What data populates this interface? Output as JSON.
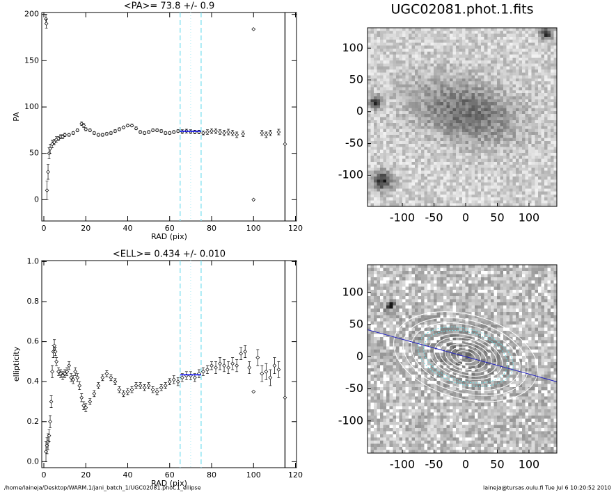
{
  "chart_data": [
    {
      "type": "scatter",
      "title": "<PA>=  73.8 +/-   0.9",
      "x_label": "RAD (pix)",
      "y_label": "PA",
      "xlim": [
        -1,
        120.5
      ],
      "ylim": [
        -23,
        202
      ],
      "xticks": [
        0,
        20,
        40,
        60,
        80,
        100,
        120
      ],
      "yticks": [
        0,
        50,
        100,
        150,
        200
      ],
      "color": "#000000",
      "x": [
        1,
        1.2,
        1.5,
        2,
        2.5,
        3,
        4,
        5,
        6,
        7,
        8,
        9,
        10,
        12,
        14,
        16,
        18,
        19,
        20,
        22,
        24,
        26,
        28,
        30,
        32,
        34,
        36,
        38,
        40,
        42,
        44,
        46,
        48,
        50,
        52,
        54,
        56,
        58,
        60,
        62,
        64,
        66,
        68,
        70,
        72,
        74,
        76,
        78,
        80,
        82,
        84,
        86,
        88,
        90,
        92,
        95,
        100,
        100,
        104,
        106,
        108,
        112,
        115
      ],
      "values": [
        195,
        190,
        10,
        30,
        50,
        55,
        60,
        62,
        65,
        66,
        68,
        68,
        70,
        70,
        72,
        75,
        82,
        80,
        76,
        75,
        72,
        70,
        70,
        71,
        72,
        74,
        76,
        78,
        80,
        80,
        77,
        73,
        72,
        73,
        75,
        75,
        74,
        72,
        72,
        73,
        74,
        73.5,
        74,
        73.5,
        73,
        73,
        72,
        73,
        74,
        74,
        73,
        72,
        73,
        72,
        70,
        71,
        184,
        0,
        72,
        70,
        72,
        73,
        60
      ],
      "errors": [
        5,
        5,
        10,
        8,
        6,
        5,
        4,
        3,
        3,
        2,
        2,
        2,
        2,
        1.5,
        1.5,
        1.5,
        2,
        2,
        1.5,
        1.5,
        1.5,
        1.5,
        1.5,
        1.5,
        1.5,
        1.5,
        1.5,
        1.5,
        1.5,
        1.5,
        1.5,
        1.5,
        1.5,
        1.5,
        1.5,
        1.5,
        1.5,
        1.5,
        1.5,
        1.5,
        1.5,
        2,
        2,
        2,
        2,
        2,
        2,
        2.5,
        2.5,
        2.5,
        2.5,
        3,
        3,
        3,
        3,
        3,
        0,
        0,
        3,
        3,
        3,
        3,
        0
      ],
      "vlines": [
        {
          "x": 65,
          "style": "dashed",
          "color": "#80e0f0"
        },
        {
          "x": 70,
          "style": "dotted",
          "color": "#c0f0f8"
        },
        {
          "x": 75,
          "style": "dashed",
          "color": "#80e0f0"
        },
        {
          "x": 115,
          "style": "solid",
          "color": "#000000"
        }
      ],
      "mean_line": {
        "x": [
          65,
          75
        ],
        "y": 73.8,
        "color": "#0000ff"
      }
    },
    {
      "type": "scatter",
      "title": "<ELL>= 0.434 +/-  0.010",
      "x_label": "RAD (pix)",
      "y_label": "ellipticity",
      "xlim": [
        -1,
        120.5
      ],
      "ylim": [
        -0.03,
        1.005
      ],
      "xticks": [
        0,
        20,
        40,
        60,
        80,
        100,
        120
      ],
      "yticks": [
        {
          "value": 0,
          "label": "0.0"
        },
        0.2,
        0.4,
        0.6,
        0.8,
        {
          "value": 1,
          "label": "1.0"
        }
      ],
      "color": "#000000",
      "x": [
        1,
        1.5,
        2,
        2.5,
        3,
        3.5,
        4,
        4.5,
        5,
        5.5,
        6,
        7,
        8,
        9,
        10,
        11,
        12,
        13,
        14,
        15,
        16,
        17,
        18,
        19,
        20,
        22,
        24,
        26,
        28,
        30,
        32,
        34,
        36,
        38,
        40,
        42,
        44,
        46,
        48,
        50,
        52,
        54,
        56,
        58,
        60,
        62,
        64,
        66,
        68,
        70,
        72,
        74,
        76,
        78,
        80,
        82,
        84,
        86,
        88,
        90,
        92,
        94,
        96,
        98,
        100,
        102,
        104,
        106,
        108,
        110,
        112,
        115
      ],
      "values": [
        0.05,
        0.08,
        0.1,
        0.13,
        0.2,
        0.3,
        0.45,
        0.55,
        0.58,
        0.55,
        0.5,
        0.45,
        0.44,
        0.43,
        0.44,
        0.45,
        0.48,
        0.42,
        0.41,
        0.45,
        0.42,
        0.38,
        0.32,
        0.28,
        0.27,
        0.3,
        0.34,
        0.38,
        0.42,
        0.44,
        0.42,
        0.4,
        0.36,
        0.34,
        0.35,
        0.36,
        0.38,
        0.38,
        0.37,
        0.38,
        0.36,
        0.35,
        0.37,
        0.38,
        0.4,
        0.41,
        0.4,
        0.42,
        0.43,
        0.43,
        0.42,
        0.44,
        0.45,
        0.46,
        0.48,
        0.47,
        0.49,
        0.48,
        0.47,
        0.49,
        0.48,
        0.54,
        0.55,
        0.47,
        0.35,
        0.52,
        0.44,
        0.45,
        0.42,
        0.48,
        0.46,
        0.32
      ],
      "errors": [
        0.05,
        0.04,
        0.04,
        0.03,
        0.03,
        0.03,
        0.03,
        0.03,
        0.03,
        0.02,
        0.02,
        0.02,
        0.02,
        0.02,
        0.02,
        0.02,
        0.02,
        0.02,
        0.02,
        0.02,
        0.02,
        0.02,
        0.02,
        0.02,
        0.02,
        0.015,
        0.015,
        0.015,
        0.015,
        0.015,
        0.015,
        0.015,
        0.015,
        0.015,
        0.015,
        0.015,
        0.015,
        0.015,
        0.015,
        0.015,
        0.015,
        0.015,
        0.015,
        0.015,
        0.015,
        0.02,
        0.02,
        0.02,
        0.02,
        0.02,
        0.02,
        0.02,
        0.02,
        0.02,
        0.02,
        0.03,
        0.03,
        0.03,
        0.03,
        0.03,
        0.03,
        0.03,
        0.03,
        0.03,
        0,
        0.04,
        0.04,
        0.04,
        0.04,
        0.04,
        0.04,
        0
      ],
      "vlines": [
        {
          "x": 65,
          "style": "dashed",
          "color": "#80e0f0"
        },
        {
          "x": 70,
          "style": "dotted",
          "color": "#c0f0f8"
        },
        {
          "x": 75,
          "style": "dashed",
          "color": "#80e0f0"
        },
        {
          "x": 115,
          "style": "solid",
          "color": "#000000"
        }
      ],
      "mean_line": {
        "x": [
          65,
          75
        ],
        "y": 0.434,
        "color": "#0000ff"
      }
    },
    {
      "type": "image",
      "title": "UGC02081.phot.1.fits",
      "xlim": [
        -155,
        144
      ],
      "ylim": [
        -149,
        132
      ],
      "xticks": [
        -100,
        -50,
        0,
        50,
        100
      ],
      "yticks": [
        -100,
        -50,
        0,
        50,
        100
      ]
    },
    {
      "type": "image",
      "xlim": [
        -155,
        144
      ],
      "ylim": [
        -150,
        143
      ],
      "xticks": [
        -100,
        -50,
        0,
        50,
        100
      ],
      "yticks": [
        -100,
        -50,
        0,
        50,
        100
      ]
    }
  ],
  "footer": {
    "left": "/home/laineja/Desktop/WARM.1/jani_batch_1/UGC02081.phot.1_ellipse",
    "right": "laineja@tursas.oulu.fi  Tue Jul  6 10:20:52 2010"
  }
}
